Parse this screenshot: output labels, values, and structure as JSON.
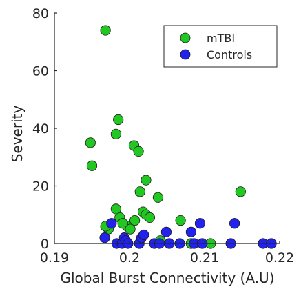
{
  "chart_data": {
    "type": "scatter",
    "title": "",
    "xlabel": "Global Burst Connectivity (A.U)",
    "ylabel": "Severity",
    "xlim": [
      0.19,
      0.22
    ],
    "ylim": [
      0,
      80
    ],
    "xticks": [
      "0.19",
      "0.2",
      "0.21",
      "0.22"
    ],
    "xtick_values": [
      0.19,
      0.2,
      0.21,
      0.22
    ],
    "yticks": [
      "0",
      "20",
      "40",
      "60",
      "80"
    ],
    "ytick_values": [
      0,
      20,
      40,
      60,
      80
    ],
    "grid": false,
    "legend_position": "top-right",
    "series": [
      {
        "name": "mTBI",
        "color": "#22c822",
        "points": [
          [
            0.1968,
            74
          ],
          [
            0.1985,
            43
          ],
          [
            0.1982,
            38
          ],
          [
            0.1948,
            35
          ],
          [
            0.195,
            27
          ],
          [
            0.2006,
            34
          ],
          [
            0.2012,
            32
          ],
          [
            0.2022,
            22
          ],
          [
            0.2014,
            18
          ],
          [
            0.2038,
            16
          ],
          [
            0.2148,
            18
          ],
          [
            0.2018,
            11
          ],
          [
            0.2022,
            10
          ],
          [
            0.2027,
            9
          ],
          [
            0.1987,
            9
          ],
          [
            0.1982,
            12
          ],
          [
            0.2068,
            8
          ],
          [
            0.2007,
            8
          ],
          [
            0.1997,
            6
          ],
          [
            0.1991,
            7
          ],
          [
            0.1972,
            5
          ],
          [
            0.1968,
            6
          ],
          [
            0.2001,
            5
          ],
          [
            0.2041,
            1
          ],
          [
            0.2082,
            0
          ],
          [
            0.2108,
            0
          ]
        ]
      },
      {
        "name": "Controls",
        "color": "#2222ee",
        "points": [
          [
            0.1967,
            2
          ],
          [
            0.1976,
            7
          ],
          [
            0.1983,
            0
          ],
          [
            0.199,
            0
          ],
          [
            0.1993,
            2
          ],
          [
            0.1995,
            1
          ],
          [
            0.1998,
            0
          ],
          [
            0.2013,
            0
          ],
          [
            0.2016,
            2
          ],
          [
            0.2019,
            3
          ],
          [
            0.2033,
            0
          ],
          [
            0.204,
            0
          ],
          [
            0.2049,
            4
          ],
          [
            0.2053,
            0
          ],
          [
            0.2067,
            0
          ],
          [
            0.2082,
            4
          ],
          [
            0.2086,
            0
          ],
          [
            0.2094,
            7
          ],
          [
            0.2097,
            0
          ],
          [
            0.2135,
            0
          ],
          [
            0.214,
            7
          ],
          [
            0.2178,
            0
          ],
          [
            0.2189,
            0
          ]
        ]
      }
    ]
  }
}
